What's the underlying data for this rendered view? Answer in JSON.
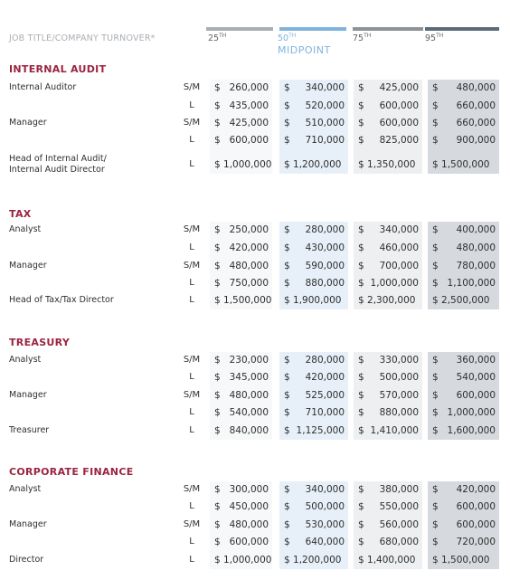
{
  "header": {
    "row_label": "JOB TITLE/COMPANY TURNOVER*",
    "cols": [
      {
        "label": "25",
        "sup": "TH",
        "sub": ""
      },
      {
        "label": "50",
        "sup": "TH",
        "sub": "MIDPOINT"
      },
      {
        "label": "75",
        "sup": "TH",
        "sub": ""
      },
      {
        "label": "95",
        "sup": "TH",
        "sub": ""
      }
    ],
    "bar_colors": [
      "#a9aeb3",
      "#7fb3dd",
      "#8d9398",
      "#5c6b78"
    ]
  },
  "currency_symbol": "$",
  "sections": [
    {
      "title": "INTERNAL AUDIT",
      "rows": [
        {
          "title": "Internal Auditor",
          "size": "S/M",
          "values": [
            "260,000",
            "340,000",
            "425,000",
            "480,000"
          ]
        },
        {
          "title": "",
          "size": "L",
          "values": [
            "435,000",
            "520,000",
            "600,000",
            "660,000"
          ]
        },
        {
          "title": "Manager",
          "size": "S/M",
          "values": [
            "425,000",
            "510,000",
            "600,000",
            "660,000"
          ]
        },
        {
          "title": "",
          "size": "L",
          "values": [
            "600,000",
            "710,000",
            "825,000",
            "900,000"
          ]
        },
        {
          "title": "Head of Internal Audit/\nInternal Audit Director",
          "size": "L",
          "values": [
            "$ 1,000,000",
            "$ 1,200,000",
            "$ 1,350,000",
            "$ 1,500,000"
          ],
          "full": true
        }
      ]
    },
    {
      "title": "TAX",
      "rows": [
        {
          "title": "Analyst",
          "size": "S/M",
          "values": [
            "250,000",
            "280,000",
            "340,000",
            "400,000"
          ]
        },
        {
          "title": "",
          "size": "L",
          "values": [
            "420,000",
            "430,000",
            "460,000",
            "480,000"
          ]
        },
        {
          "title": "Manager",
          "size": "S/M",
          "values": [
            "480,000",
            "590,000",
            "700,000",
            "780,000"
          ]
        },
        {
          "title": "",
          "size": "L",
          "values": [
            "750,000",
            "880,000",
            "1,000,000",
            "1,100,000"
          ]
        },
        {
          "title": "Head of Tax/Tax Director",
          "size": "L",
          "values": [
            "$ 1,500,000",
            "$ 1,900,000",
            "$ 2,300,000",
            "$ 2,500,000"
          ],
          "full": true
        }
      ]
    },
    {
      "title": "TREASURY",
      "rows": [
        {
          "title": "Analyst",
          "size": "S/M",
          "values": [
            "230,000",
            "280,000",
            "330,000",
            "360,000"
          ]
        },
        {
          "title": "",
          "size": "L",
          "values": [
            "345,000",
            "420,000",
            "500,000",
            "540,000"
          ]
        },
        {
          "title": "Manager",
          "size": "S/M",
          "values": [
            "480,000",
            "525,000",
            "570,000",
            "600,000"
          ]
        },
        {
          "title": "",
          "size": "L",
          "values": [
            "540,000",
            "710,000",
            "880,000",
            "1,000,000"
          ]
        },
        {
          "title": "Treasurer",
          "size": "L",
          "values": [
            "840,000",
            "1,125,000",
            "1,410,000",
            "1,600,000"
          ]
        }
      ]
    },
    {
      "title": "CORPORATE FINANCE",
      "rows": [
        {
          "title": "Analyst",
          "size": "S/M",
          "values": [
            "300,000",
            "340,000",
            "380,000",
            "420,000"
          ]
        },
        {
          "title": "",
          "size": "L",
          "values": [
            "450,000",
            "500,000",
            "550,000",
            "600,000"
          ]
        },
        {
          "title": "Manager",
          "size": "S/M",
          "values": [
            "480,000",
            "530,000",
            "560,000",
            "600,000"
          ]
        },
        {
          "title": "",
          "size": "L",
          "values": [
            "600,000",
            "640,000",
            "680,000",
            "720,000"
          ]
        },
        {
          "title": "Director",
          "size": "L",
          "values": [
            "$ 1,000,000",
            "$ 1,200,000",
            "$ 1,400,000",
            "$ 1,500,000"
          ],
          "full": true
        }
      ]
    }
  ]
}
